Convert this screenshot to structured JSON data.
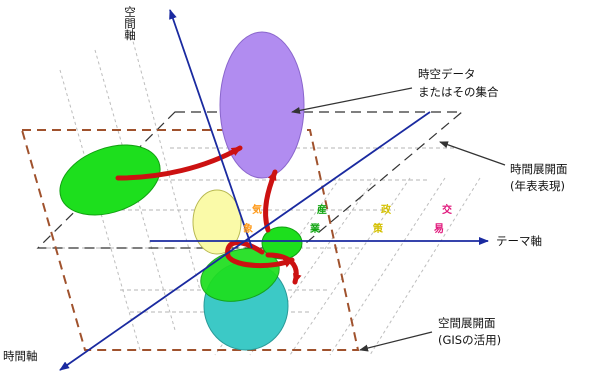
{
  "axes": {
    "space_axis": "空間軸",
    "time_axis": "時間軸",
    "theme_axis": "テーマ軸"
  },
  "labels": {
    "spatiotemporal_data": [
      "時空データ",
      "またはその集合"
    ],
    "time_plane": [
      "時間展開面",
      "(年表表現)"
    ],
    "space_plane": [
      "空間展開面",
      "(GISの活用)"
    ]
  },
  "theme_categories": [
    {
      "top": "気",
      "bottom": "象",
      "color": "#ff9a1a"
    },
    {
      "top": "産",
      "bottom": "業",
      "color": "#13a613"
    },
    {
      "top": "政",
      "bottom": "策",
      "color": "#d4c000"
    },
    {
      "top": "交",
      "bottom": "易",
      "color": "#e0157a"
    }
  ],
  "colors": {
    "time_plane_border": "#a0522d",
    "purple_ellipse": "#b18cf0",
    "green_ellipse": "#1ddf1d",
    "yellow_ellipse": "#fafaa8",
    "teal_ellipse": "#3cc9c6",
    "arrow_red": "#cc1111"
  }
}
